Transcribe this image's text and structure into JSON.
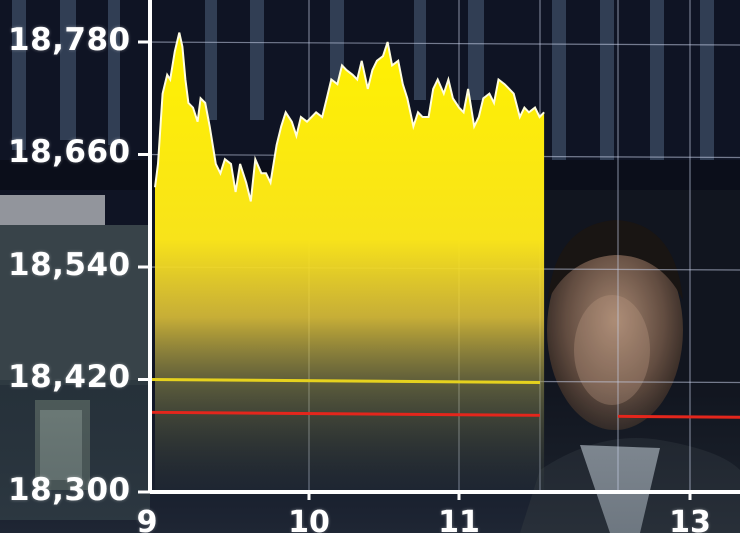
{
  "chart_data": {
    "type": "area",
    "y_tick_labels": [
      "18,780",
      "18,660",
      "18,540",
      "18,420",
      "18,300"
    ],
    "x_tick_labels": [
      "9",
      "10",
      "11",
      "13"
    ],
    "ylim": [
      18300,
      18780
    ],
    "grid": true,
    "series_color": "#ffee00",
    "reference_lines": [
      {
        "value": 18420,
        "color": "#e6d21e"
      },
      {
        "value": 18385,
        "color": "#e4261c"
      }
    ],
    "series": [
      {
        "x": [
          9.0,
          9.02,
          9.05,
          9.08,
          9.1,
          9.13,
          9.16,
          9.18,
          9.2,
          9.22,
          9.25,
          9.28,
          9.3,
          9.33,
          9.36,
          9.4,
          9.43,
          9.46,
          9.5,
          9.53,
          9.56,
          9.6,
          9.63,
          9.66,
          9.7,
          9.73,
          9.76,
          9.8,
          9.83,
          9.86,
          9.9,
          9.93,
          9.96,
          10.0,
          10.03,
          10.06,
          10.1,
          10.13,
          10.16,
          10.2,
          10.23,
          10.26,
          10.3,
          10.33,
          10.36,
          10.4,
          10.43,
          10.46,
          10.5,
          10.53,
          10.56,
          10.6,
          10.63,
          10.66,
          10.7,
          10.73,
          10.76,
          10.8,
          10.83,
          10.86,
          10.9,
          10.93,
          10.96,
          11.0,
          11.03,
          11.06,
          11.1,
          11.13,
          11.16,
          11.2,
          11.23,
          11.26,
          11.3,
          11.33,
          11.36,
          11.4,
          11.43,
          11.46,
          11.5,
          11.53,
          11.56
        ],
        "values": [
          18625,
          18650,
          18725,
          18745,
          18740,
          18770,
          18790,
          18775,
          18740,
          18715,
          18710,
          18695,
          18720,
          18715,
          18690,
          18650,
          18640,
          18655,
          18650,
          18620,
          18650,
          18630,
          18610,
          18655,
          18640,
          18640,
          18630,
          18670,
          18690,
          18705,
          18695,
          18680,
          18700,
          18695,
          18700,
          18705,
          18700,
          18720,
          18740,
          18735,
          18755,
          18750,
          18745,
          18740,
          18760,
          18730,
          18750,
          18760,
          18765,
          18780,
          18755,
          18760,
          18735,
          18720,
          18690,
          18705,
          18700,
          18700,
          18730,
          18740,
          18725,
          18740,
          18720,
          18710,
          18705,
          18730,
          18690,
          18700,
          18720,
          18725,
          18715,
          18740,
          18735,
          18730,
          18725,
          18700,
          18710,
          18705,
          18710,
          18700,
          18705
        ]
      }
    ]
  }
}
